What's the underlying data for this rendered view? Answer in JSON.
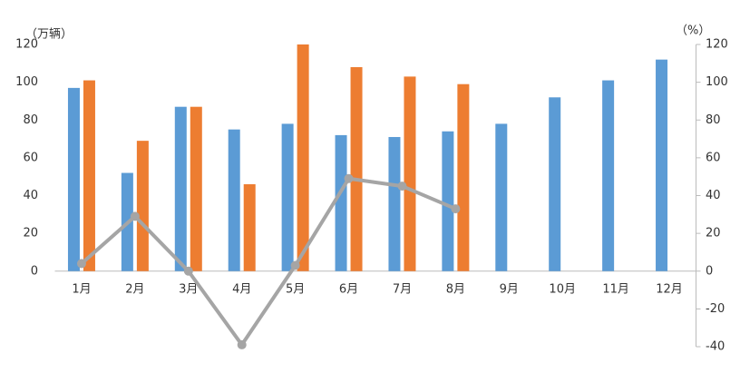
{
  "chart_data": {
    "type": "bar-line",
    "y_unit_label": "（万辆）",
    "y2_unit_label": "（%）",
    "categories": [
      "1月",
      "2月",
      "3月",
      "4月",
      "5月",
      "6月",
      "7月",
      "8月",
      "9月",
      "10月",
      "11月",
      "12月"
    ],
    "series": [
      {
        "type": "bar",
        "color": "#5b9bd5",
        "values": [
          97,
          52,
          87,
          75,
          78,
          72,
          71,
          74,
          78,
          92,
          101,
          112
        ]
      },
      {
        "type": "bar",
        "color": "#ed7d31",
        "values": [
          101,
          69,
          87,
          46,
          120,
          108,
          103,
          99,
          null,
          null,
          null,
          null
        ]
      },
      {
        "type": "line",
        "axis": "y2",
        "color": "#a5a5a5",
        "values": [
          4,
          29,
          0,
          -39,
          3,
          49,
          45,
          33,
          null,
          null,
          null,
          null
        ]
      }
    ],
    "ylim": [
      -40,
      120
    ],
    "yticks": [
      0,
      20,
      40,
      60,
      80,
      100,
      120
    ],
    "y2lim": [
      -40,
      120
    ],
    "y2ticks": [
      -40,
      -20,
      0,
      20,
      40,
      60,
      80,
      100,
      120
    ],
    "negative_tick_color": "#ff0000"
  }
}
